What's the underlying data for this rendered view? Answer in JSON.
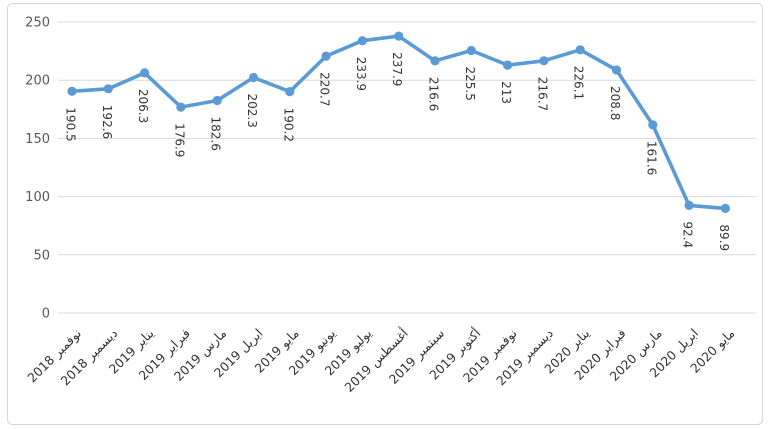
{
  "chart_data": {
    "type": "line",
    "title": "",
    "xlabel": "",
    "ylabel": "",
    "categories": [
      "نوفمبر 2018",
      "ديسمبر 2018",
      "يناير 2019",
      "فبراير 2019",
      "مارس 2019",
      "ابريل 2019",
      "مايو 2019",
      "يونيو 2019",
      "يوليو 2019",
      "أغسطس 2019",
      "سبتمبر 2019",
      "أكتوبر 2019",
      "نوفمبر 2019",
      "ديسمبر 2019",
      "يناير 2020",
      "فبراير 2020",
      "مارس 2020",
      "ابريل 2020",
      "مايو 2020"
    ],
    "series": [
      {
        "name": "series-1",
        "values": [
          190.5,
          192.6,
          206.3,
          176.9,
          182.6,
          202.3,
          190.2,
          220.7,
          233.9,
          237.9,
          216.6,
          225.5,
          213,
          216.7,
          226.1,
          208.8,
          161.6,
          92.4,
          89.9
        ],
        "value_labels": [
          "190.5",
          "192.6",
          "206.3",
          "176.9",
          "182.6",
          "202.3",
          "190.2",
          "220.7",
          "233.9",
          "237.9",
          "216.6",
          "225.5",
          "213",
          "216.7",
          "226.1",
          "208.8",
          "161.6",
          "92.4",
          "89.9"
        ]
      }
    ],
    "ylim": [
      0,
      250
    ],
    "yticks": [
      0,
      50,
      100,
      150,
      200,
      250
    ],
    "grid": true,
    "legend_position": "none",
    "data_labels_rotation_deg": 90,
    "x_labels_rotation_deg": -45,
    "colors": {
      "series_line": "#5B9BD5",
      "marker": "#5B9BD5",
      "gridline": "#D9D9D9",
      "chart_border": "#D6D6D6",
      "y_tick_label": "#595959",
      "x_tick_label": "#333333",
      "data_label": "#363636",
      "background": "#FFFFFF"
    }
  }
}
